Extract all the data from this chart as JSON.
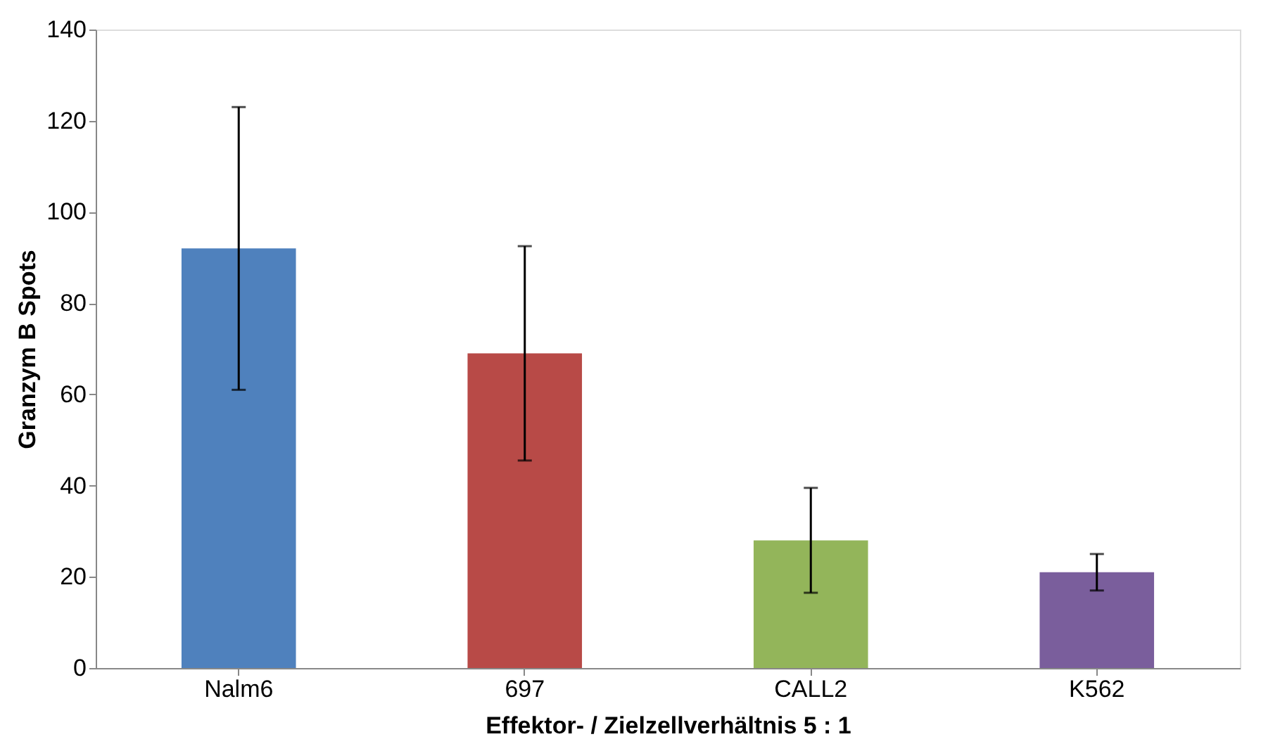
{
  "chart_data": {
    "type": "bar",
    "xlabel": "Effektor- / Zielzellverhältnis 5 : 1",
    "ylabel": "Granzym B Spots",
    "categories": [
      "Nalm6",
      "697",
      "CALL2",
      "K562"
    ],
    "values": [
      92,
      69,
      28,
      21
    ],
    "errors": [
      31,
      23.5,
      11.5,
      4
    ],
    "colors": [
      "#4f81bd",
      "#b84a47",
      "#93b55a",
      "#7a5e9c"
    ],
    "ylim": [
      0,
      140
    ],
    "yticks": [
      0,
      20,
      40,
      60,
      80,
      100,
      120,
      140
    ],
    "grid": false
  }
}
